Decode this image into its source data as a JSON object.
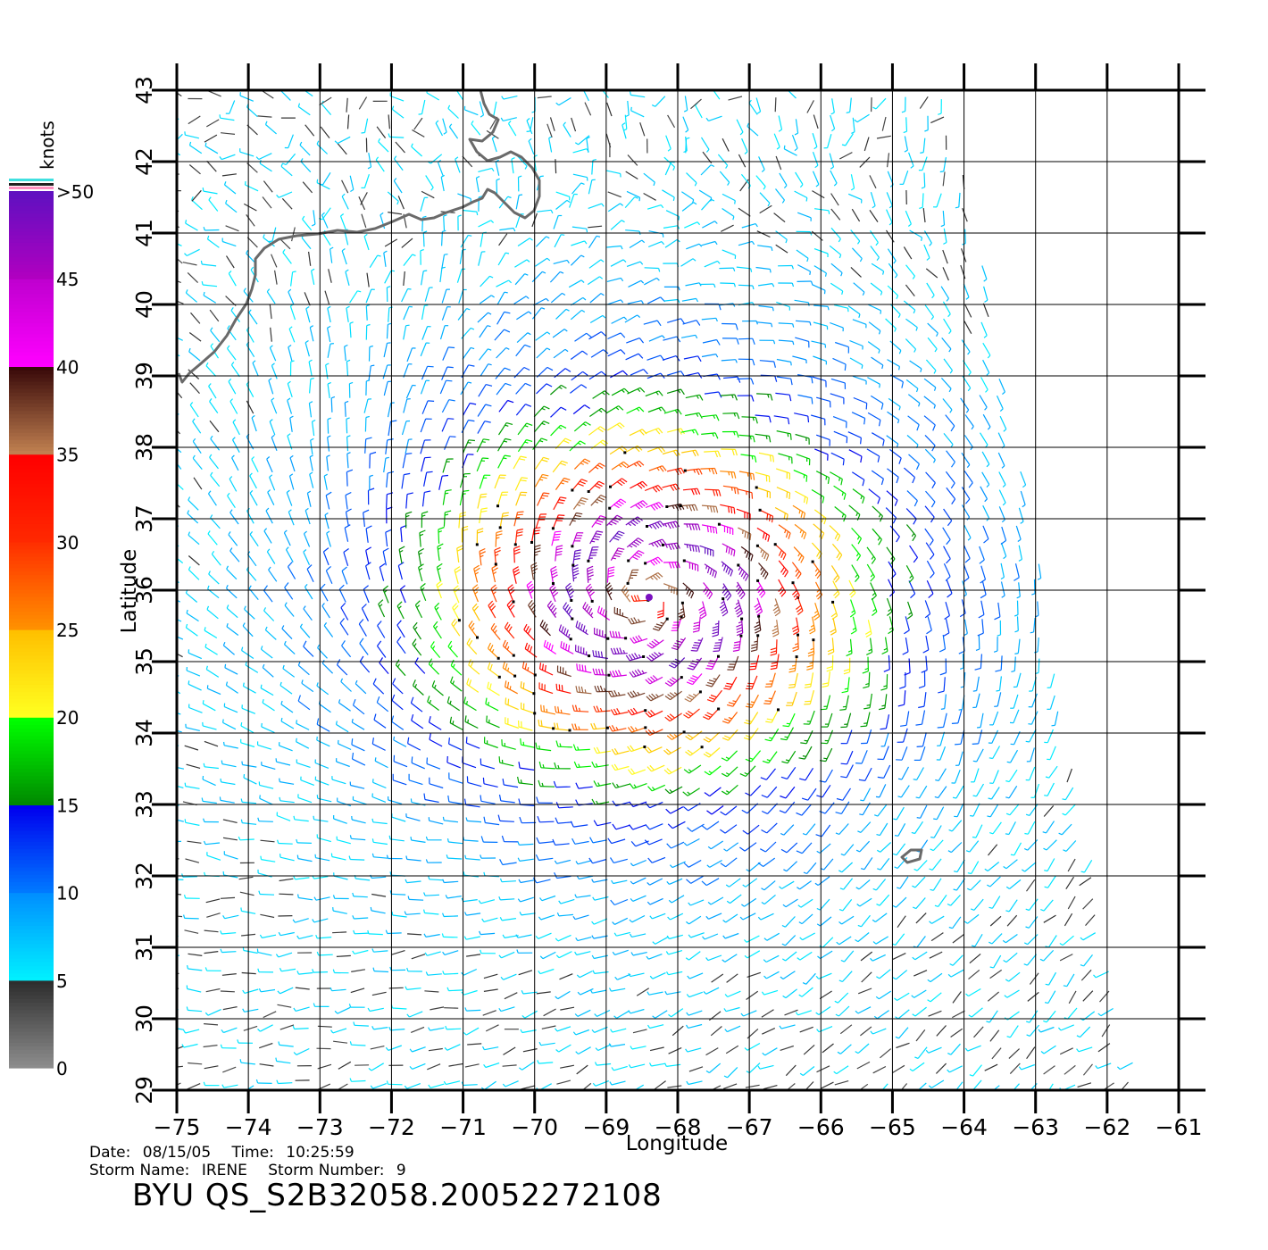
{
  "chart_data": {
    "type": "wind-barb-map",
    "xlabel": "Longitude",
    "ylabel": "Latitude",
    "xlim": [
      -75,
      -61
    ],
    "ylim": [
      29,
      43
    ],
    "x_ticks": [
      "−75",
      "−74",
      "−73",
      "−72",
      "−71",
      "−70",
      "−69",
      "−68",
      "−67",
      "−66",
      "−65",
      "−64",
      "−63",
      "−62",
      "−61"
    ],
    "y_ticks": [
      "29",
      "30",
      "31",
      "32",
      "33",
      "34",
      "35",
      "36",
      "37",
      "38",
      "39",
      "40",
      "41",
      "42",
      "43"
    ],
    "grid": true,
    "storm_center": {
      "lon": -68.4,
      "lat": 35.9
    },
    "colorbar": {
      "units": "knots",
      "labels": [
        "0",
        "5",
        "10",
        "15",
        "20",
        "25",
        "30",
        "35",
        "40",
        "45",
        ">50"
      ],
      "bands": [
        {
          "from": 0,
          "to": 5,
          "colors": [
            "#8c8c8c",
            "#2e2e2e"
          ]
        },
        {
          "from": 5,
          "to": 10,
          "colors": [
            "#00f0ff",
            "#0090ff"
          ]
        },
        {
          "from": 10,
          "to": 15,
          "colors": [
            "#0078ff",
            "#0000ee"
          ]
        },
        {
          "from": 15,
          "to": 20,
          "colors": [
            "#008a00",
            "#00ff00"
          ]
        },
        {
          "from": 20,
          "to": 25,
          "colors": [
            "#ffff20",
            "#ffc000"
          ]
        },
        {
          "from": 25,
          "to": 30,
          "colors": [
            "#ff9000",
            "#ff3000"
          ]
        },
        {
          "from": 30,
          "to": 35,
          "colors": [
            "#ff2800",
            "#ff0000"
          ]
        },
        {
          "from": 35,
          "to": 40,
          "colors": [
            "#c08050",
            "#3a0a0a"
          ]
        },
        {
          "from": 40,
          "to": 45,
          "colors": [
            "#ff00ff",
            "#c000d0"
          ]
        },
        {
          "from": 45,
          "to": 50,
          "colors": [
            "#b000c0",
            "#6010c0"
          ]
        }
      ]
    }
  },
  "footer": {
    "date_label": "Date:",
    "date": "08/15/05",
    "time_label": "Time:",
    "time": "10:25:59",
    "storm_name_label": "Storm Name:",
    "storm_name": "IRENE",
    "storm_number_label": "Storm Number:",
    "storm_number": "9",
    "product_id": "BYU  QS_S2B32058.20052272108"
  }
}
